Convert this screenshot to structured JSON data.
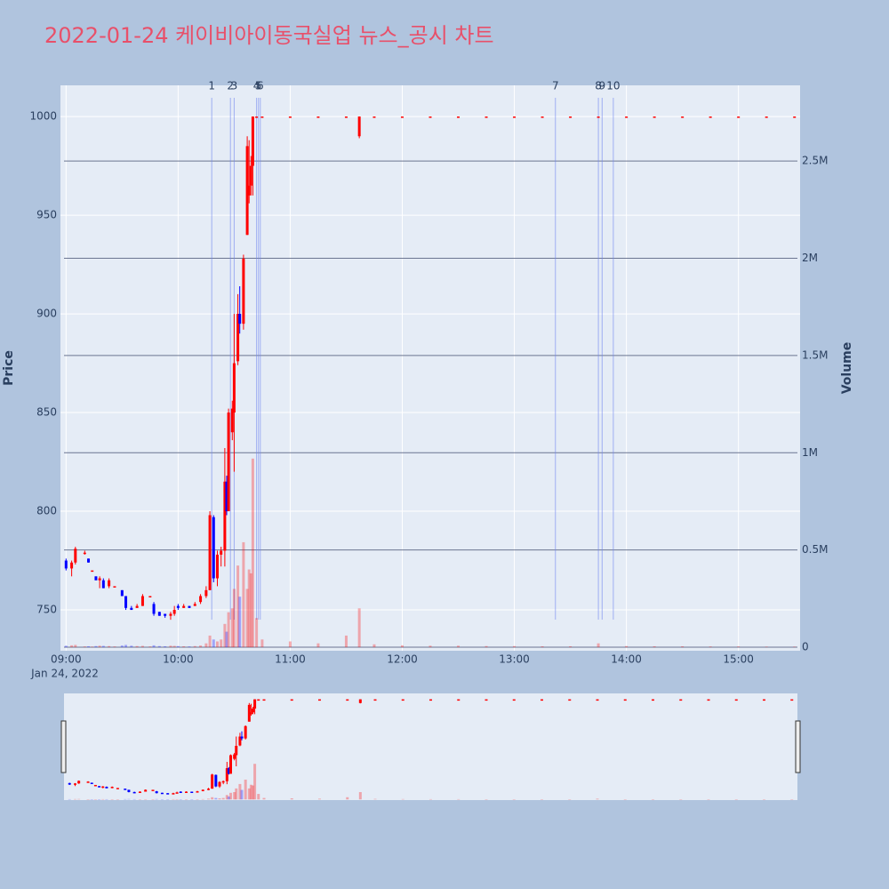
{
  "chart_data": {
    "type": "candlestick",
    "title": "2022-01-24 케이비아이동국실업 뉴스_공시 차트",
    "y_label": "Price",
    "y2_label": "Volume",
    "x_date_label": "Jan 24, 2022",
    "x": [
      "2022-01-24 09:00",
      "2022-01-24 09:03",
      "2022-01-24 09:05",
      "2022-01-24 09:10",
      "2022-01-24 09:12",
      "2022-01-24 09:14",
      "2022-01-24 09:16",
      "2022-01-24 09:18",
      "2022-01-24 09:20",
      "2022-01-24 09:23",
      "2022-01-24 09:26",
      "2022-01-24 09:30",
      "2022-01-24 09:32",
      "2022-01-24 09:35",
      "2022-01-24 09:38",
      "2022-01-24 09:41",
      "2022-01-24 09:45",
      "2022-01-24 09:47",
      "2022-01-24 09:50",
      "2022-01-24 09:53",
      "2022-01-24 09:56",
      "2022-01-24 09:58",
      "2022-01-24 10:00",
      "2022-01-24 10:03",
      "2022-01-24 10:06",
      "2022-01-24 10:09",
      "2022-01-24 10:12",
      "2022-01-24 10:15",
      "2022-01-24 10:17",
      "2022-01-24 10:19",
      "2022-01-24 10:21",
      "2022-01-24 10:23",
      "2022-01-24 10:25",
      "2022-01-24 10:26",
      "2022-01-24 10:27",
      "2022-01-24 10:29",
      "2022-01-24 10:30",
      "2022-01-24 10:32",
      "2022-01-24 10:33",
      "2022-01-24 10:35",
      "2022-01-24 10:37",
      "2022-01-24 10:38",
      "2022-01-24 10:39",
      "2022-01-24 10:40",
      "2022-01-24 10:42",
      "2022-01-24 10:45",
      "2022-01-24 11:00",
      "2022-01-24 11:15",
      "2022-01-24 11:30",
      "2022-01-24 11:37",
      "2022-01-24 11:45",
      "2022-01-24 12:00",
      "2022-01-24 12:15",
      "2022-01-24 12:30",
      "2022-01-24 12:45",
      "2022-01-24 13:00",
      "2022-01-24 13:15",
      "2022-01-24 13:30",
      "2022-01-24 13:45",
      "2022-01-24 14:00",
      "2022-01-24 14:15",
      "2022-01-24 14:30",
      "2022-01-24 14:45",
      "2022-01-24 15:00",
      "2022-01-24 15:15",
      "2022-01-24 15:30"
    ],
    "open": [
      775,
      771,
      774,
      779,
      776,
      770,
      767,
      765,
      765,
      762,
      762,
      760,
      757,
      751,
      751,
      752,
      757,
      753,
      749,
      748,
      747,
      748,
      752,
      751,
      752,
      752,
      754,
      757,
      760,
      797,
      766,
      778,
      780,
      815,
      800,
      840,
      850,
      876,
      900,
      895,
      940,
      960,
      965,
      975,
      1000,
      1000,
      1000,
      1000,
      1000,
      990,
      1000,
      1000,
      1000,
      1000,
      1000,
      1000,
      1000,
      1000,
      1000,
      1000,
      1000,
      1000,
      1000,
      1000,
      1000,
      1000
    ],
    "high": [
      776,
      775,
      782,
      780,
      776,
      770,
      767,
      767,
      766,
      766,
      762,
      760,
      757,
      752,
      753,
      758,
      757,
      754,
      749,
      748,
      749,
      752,
      753,
      753,
      752,
      754,
      758,
      762,
      800,
      798,
      780,
      782,
      832,
      818,
      852,
      856,
      900,
      910,
      914,
      930,
      990,
      988,
      980,
      1000,
      1000,
      1000,
      1000,
      1000,
      1000,
      1000,
      1000,
      1000,
      1000,
      1000,
      1000,
      1000,
      1000,
      1000,
      1000,
      1000,
      1000,
      1000,
      1000,
      1000,
      1000,
      1000
    ],
    "low": [
      770,
      767,
      773,
      778,
      774,
      770,
      765,
      761,
      761,
      761,
      762,
      757,
      750,
      750,
      751,
      752,
      757,
      747,
      747,
      746,
      745,
      747,
      750,
      751,
      751,
      752,
      753,
      756,
      760,
      764,
      762,
      772,
      772,
      798,
      800,
      836,
      820,
      874,
      890,
      892,
      940,
      956,
      960,
      960,
      1000,
      1000,
      1000,
      1000,
      1000,
      989,
      1000,
      1000,
      1000,
      1000,
      1000,
      1000,
      1000,
      1000,
      1000,
      1000,
      1000,
      1000,
      1000,
      1000,
      1000,
      1000
    ],
    "close": [
      771,
      774,
      781,
      779,
      774,
      770,
      765,
      766,
      761,
      765,
      762,
      757,
      751,
      750,
      752,
      757,
      757,
      748,
      747,
      747,
      748,
      750,
      751,
      752,
      751,
      753,
      757,
      760,
      798,
      766,
      778,
      780,
      815,
      800,
      850,
      852,
      875,
      900,
      895,
      928,
      985,
      965,
      975,
      1000,
      1000,
      1000,
      1000,
      1000,
      1000,
      1000,
      1000,
      1000,
      1000,
      1000,
      1000,
      1000,
      1000,
      1000,
      1000,
      1000,
      1000,
      1000,
      1000,
      1000,
      1000,
      1000
    ],
    "volume": [
      8000,
      10000,
      12000,
      4000,
      5000,
      3000,
      6000,
      8000,
      7000,
      6000,
      4000,
      9000,
      12000,
      8000,
      6000,
      7000,
      4000,
      10000,
      6000,
      5000,
      8000,
      7000,
      6000,
      5000,
      4000,
      6000,
      9000,
      20000,
      60000,
      40000,
      30000,
      40000,
      120000,
      80000,
      180000,
      200000,
      300000,
      420000,
      260000,
      540000,
      300000,
      400000,
      380000,
      970000,
      150000,
      40000,
      30000,
      20000,
      60000,
      200000,
      15000,
      10000,
      8000,
      8000,
      6000,
      6000,
      5000,
      5000,
      20000,
      6000,
      5000,
      5000,
      4000,
      4000,
      3000,
      3000
    ],
    "increasing_color": "#ff0000",
    "decreasing_color": "#0000ff",
    "events": {
      "x": [
        "2022-01-24 10:18",
        "2022-01-24 10:28",
        "2022-01-24 10:30",
        "2022-01-24 10:42",
        "2022-01-24 10:43",
        "2022-01-24 10:44",
        "2022-01-24 13:22",
        "2022-01-24 13:45",
        "2022-01-24 13:47",
        "2022-01-24 13:53"
      ],
      "labels": [
        "1",
        "2",
        "3",
        "4",
        "5",
        "6",
        "7",
        "8",
        "9",
        "10"
      ],
      "color": "#6f86f0"
    },
    "xlim": [
      "2022-01-24 08:57",
      "2022-01-24 15:33"
    ],
    "xticks": [
      {
        "value": "2022-01-24 09:00",
        "label": "09:00"
      },
      {
        "value": "2022-01-24 10:00",
        "label": "10:00"
      },
      {
        "value": "2022-01-24 11:00",
        "label": "11:00"
      },
      {
        "value": "2022-01-24 12:00",
        "label": "12:00"
      },
      {
        "value": "2022-01-24 13:00",
        "label": "13:00"
      },
      {
        "value": "2022-01-24 14:00",
        "label": "14:00"
      },
      {
        "value": "2022-01-24 15:00",
        "label": "15:00"
      }
    ],
    "ylim": [
      729.3,
      1015.8
    ],
    "yticks": [
      750,
      800,
      850,
      900,
      950,
      1000
    ],
    "y2lim": [
      -18000,
      2889000
    ],
    "y2ticks": [
      0,
      {
        "value": 500000,
        "label": "0.5M"
      },
      {
        "value": 1000000,
        "label": "1M"
      },
      {
        "value": 1500000,
        "label": "1.5M"
      },
      {
        "value": 2000000,
        "label": "2M"
      },
      {
        "value": 2500000,
        "label": "2.5M"
      }
    ],
    "grid": true
  }
}
